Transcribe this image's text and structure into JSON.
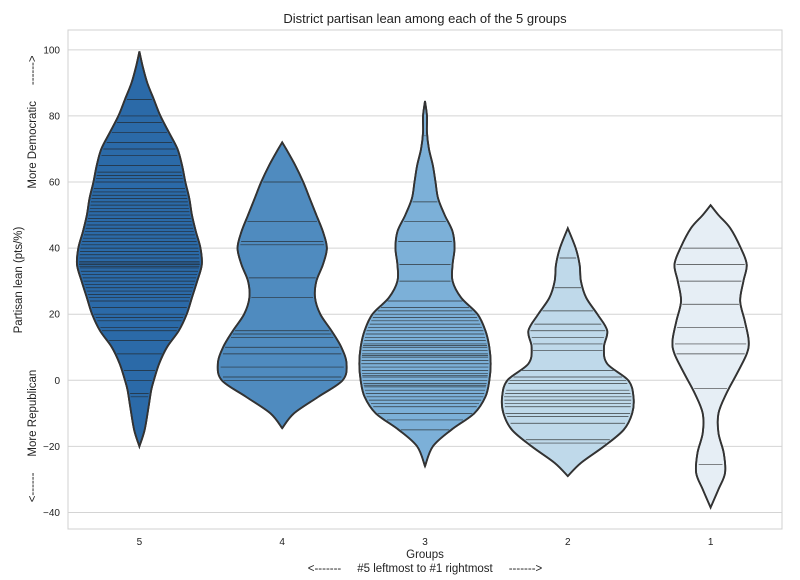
{
  "chart_data": {
    "type": "violin",
    "title": "District partisan lean among each of the 5 groups",
    "xlabel": "Groups",
    "xlabel_sub": "<-------     #5 leftmost to #1 rightmost     ------->",
    "ylabel": "Partisan lean (pts/%)",
    "ylabel_top": "More Democratic     ------>",
    "ylabel_bottom": "<------     More Republican",
    "ylim": [
      -45,
      106
    ],
    "yticks": [
      -40,
      -20,
      0,
      20,
      40,
      60,
      80,
      100
    ],
    "ytick_labels": [
      "−40",
      "−20",
      "0",
      "20",
      "40",
      "60",
      "80",
      "100"
    ],
    "grid": true,
    "categories": [
      "5",
      "4",
      "3",
      "2",
      "1"
    ],
    "series": [
      {
        "category": "5",
        "color": "#2b6aa8",
        "min": -20,
        "max": 99.5,
        "density": [
          [
            -20,
            0.0
          ],
          [
            -15,
            0.08
          ],
          [
            -8,
            0.14
          ],
          [
            -3,
            0.18
          ],
          [
            0,
            0.22
          ],
          [
            5,
            0.3
          ],
          [
            10,
            0.42
          ],
          [
            15,
            0.6
          ],
          [
            20,
            0.72
          ],
          [
            25,
            0.8
          ],
          [
            30,
            0.88
          ],
          [
            35,
            0.95
          ],
          [
            40,
            0.93
          ],
          [
            45,
            0.86
          ],
          [
            50,
            0.8
          ],
          [
            55,
            0.76
          ],
          [
            60,
            0.7
          ],
          [
            65,
            0.65
          ],
          [
            70,
            0.58
          ],
          [
            75,
            0.45
          ],
          [
            80,
            0.32
          ],
          [
            85,
            0.22
          ],
          [
            90,
            0.12
          ],
          [
            95,
            0.05
          ],
          [
            99.5,
            0.0
          ]
        ],
        "values": [
          -5,
          -4,
          0,
          3,
          8,
          12,
          15,
          16,
          18,
          19,
          20,
          22,
          24,
          25,
          26,
          27,
          28,
          29,
          30,
          31,
          32,
          33,
          34,
          34.5,
          35,
          35.5,
          36,
          37,
          38,
          39,
          40,
          41,
          42,
          43,
          44,
          45,
          46,
          47,
          48,
          49,
          50,
          51,
          52,
          53,
          54,
          55,
          56,
          57,
          58,
          60,
          61,
          62,
          63,
          65,
          68,
          70,
          72,
          75,
          78,
          80,
          85
        ]
      },
      {
        "category": "4",
        "color": "#4f8bbf",
        "min": -14.5,
        "max": 72,
        "density": [
          [
            -14.5,
            0.0
          ],
          [
            -10,
            0.18
          ],
          [
            -5,
            0.55
          ],
          [
            0,
            0.92
          ],
          [
            5,
            0.98
          ],
          [
            10,
            0.9
          ],
          [
            15,
            0.75
          ],
          [
            20,
            0.58
          ],
          [
            25,
            0.5
          ],
          [
            30,
            0.52
          ],
          [
            35,
            0.62
          ],
          [
            40,
            0.68
          ],
          [
            45,
            0.62
          ],
          [
            50,
            0.52
          ],
          [
            55,
            0.42
          ],
          [
            60,
            0.32
          ],
          [
            65,
            0.2
          ],
          [
            70,
            0.06
          ],
          [
            72,
            0.0
          ]
        ],
        "values": [
          0,
          1,
          4,
          8,
          10,
          13,
          14,
          15,
          25,
          31,
          41,
          42,
          48,
          60
        ]
      },
      {
        "category": "3",
        "color": "#7cb0d8",
        "min": -26,
        "max": 84.5,
        "density": [
          [
            -26,
            0.0
          ],
          [
            -20,
            0.12
          ],
          [
            -15,
            0.4
          ],
          [
            -10,
            0.75
          ],
          [
            -5,
            0.92
          ],
          [
            0,
            0.98
          ],
          [
            5,
            1.0
          ],
          [
            10,
            0.98
          ],
          [
            15,
            0.92
          ],
          [
            20,
            0.8
          ],
          [
            25,
            0.55
          ],
          [
            30,
            0.42
          ],
          [
            35,
            0.42
          ],
          [
            40,
            0.45
          ],
          [
            45,
            0.42
          ],
          [
            50,
            0.3
          ],
          [
            55,
            0.2
          ],
          [
            60,
            0.16
          ],
          [
            65,
            0.12
          ],
          [
            70,
            0.06
          ],
          [
            75,
            0.03
          ],
          [
            80,
            0.03
          ],
          [
            84.5,
            0.0
          ]
        ],
        "values": [
          -15,
          -12,
          -10,
          -8,
          -7,
          -6,
          -5,
          -4,
          -3,
          -2,
          -1.5,
          -1,
          0,
          1,
          1.5,
          2,
          3,
          4,
          5,
          6,
          7,
          7.5,
          8,
          9,
          10,
          10.5,
          11,
          12,
          13,
          14,
          15,
          16,
          17,
          18,
          19,
          20,
          21,
          22,
          24,
          30,
          35,
          42,
          48,
          54,
          74
        ]
      },
      {
        "category": "2",
        "color": "#bfd9ea",
        "min": -29,
        "max": 46,
        "density": [
          [
            -29,
            0.0
          ],
          [
            -25,
            0.2
          ],
          [
            -20,
            0.55
          ],
          [
            -15,
            0.85
          ],
          [
            -10,
            0.98
          ],
          [
            -5,
            1.0
          ],
          [
            0,
            0.92
          ],
          [
            5,
            0.6
          ],
          [
            10,
            0.55
          ],
          [
            15,
            0.6
          ],
          [
            20,
            0.45
          ],
          [
            25,
            0.28
          ],
          [
            30,
            0.2
          ],
          [
            35,
            0.18
          ],
          [
            40,
            0.12
          ],
          [
            46,
            0.0
          ]
        ],
        "values": [
          -19,
          -18,
          -13,
          -11,
          -10,
          -8,
          -7,
          -6,
          -5,
          -4,
          -3,
          -1,
          0,
          1,
          3,
          9,
          11,
          13,
          15,
          17,
          21,
          28,
          37
        ]
      },
      {
        "category": "1",
        "color": "#e6eef5",
        "min": -38.5,
        "max": 53,
        "density": [
          [
            -38.5,
            0.0
          ],
          [
            -33,
            0.12
          ],
          [
            -28,
            0.22
          ],
          [
            -22,
            0.2
          ],
          [
            -16,
            0.12
          ],
          [
            -10,
            0.12
          ],
          [
            -4,
            0.24
          ],
          [
            2,
            0.4
          ],
          [
            8,
            0.55
          ],
          [
            12,
            0.58
          ],
          [
            18,
            0.52
          ],
          [
            24,
            0.45
          ],
          [
            30,
            0.5
          ],
          [
            35,
            0.55
          ],
          [
            40,
            0.46
          ],
          [
            46,
            0.3
          ],
          [
            50,
            0.12
          ],
          [
            53,
            0.0
          ]
        ],
        "values": [
          -25.5,
          -2.5,
          8,
          11,
          16,
          23,
          30,
          35,
          40
        ]
      }
    ]
  }
}
